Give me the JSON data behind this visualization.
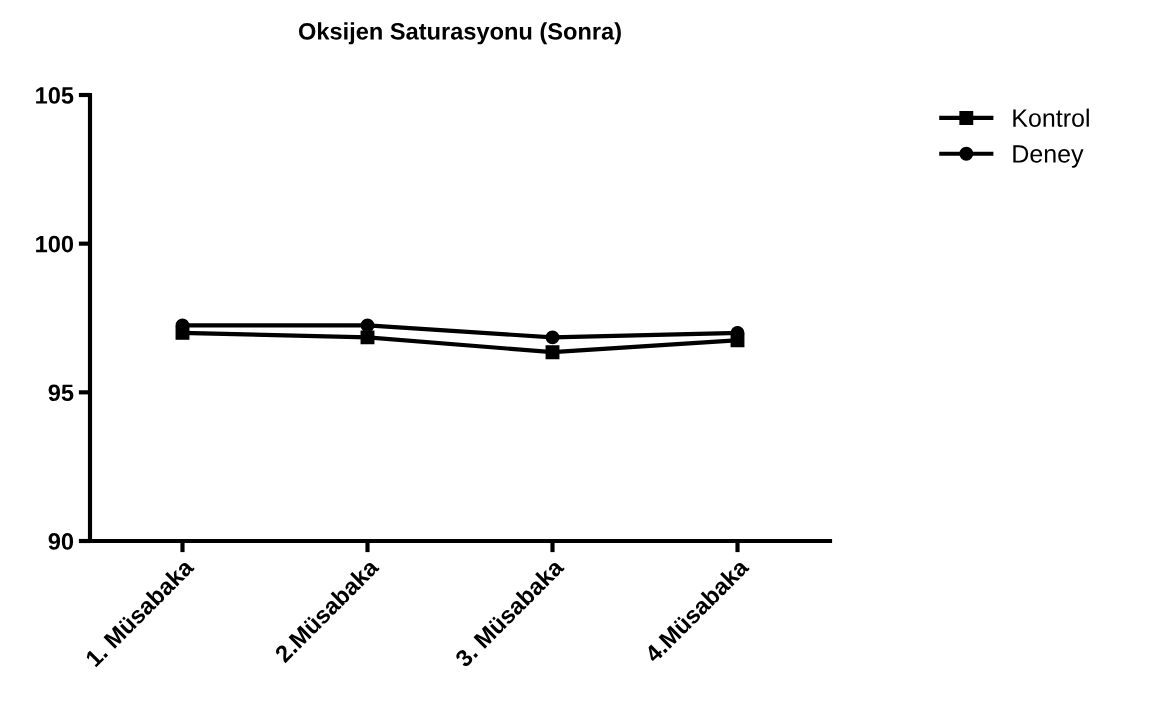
{
  "chart_data": {
    "type": "line",
    "title": "Oksijen Saturasyonu (Sonra)",
    "categories": [
      "1. Müsabaka",
      "2.Müsabaka",
      "3. Müsabaka",
      "4.Müsabaka"
    ],
    "series": [
      {
        "name": "Kontrol",
        "color": "#000000",
        "marker": "square",
        "values": [
          97.0,
          96.85,
          96.35,
          96.75
        ]
      },
      {
        "name": "Deney",
        "color": "#000000",
        "marker": "circle",
        "values": [
          97.25,
          97.25,
          96.85,
          97.0
        ]
      }
    ],
    "ylim": [
      90,
      105
    ],
    "yticks": [
      90,
      95,
      100,
      105
    ],
    "grid": false,
    "legend": "top right",
    "line_style": "solid"
  }
}
